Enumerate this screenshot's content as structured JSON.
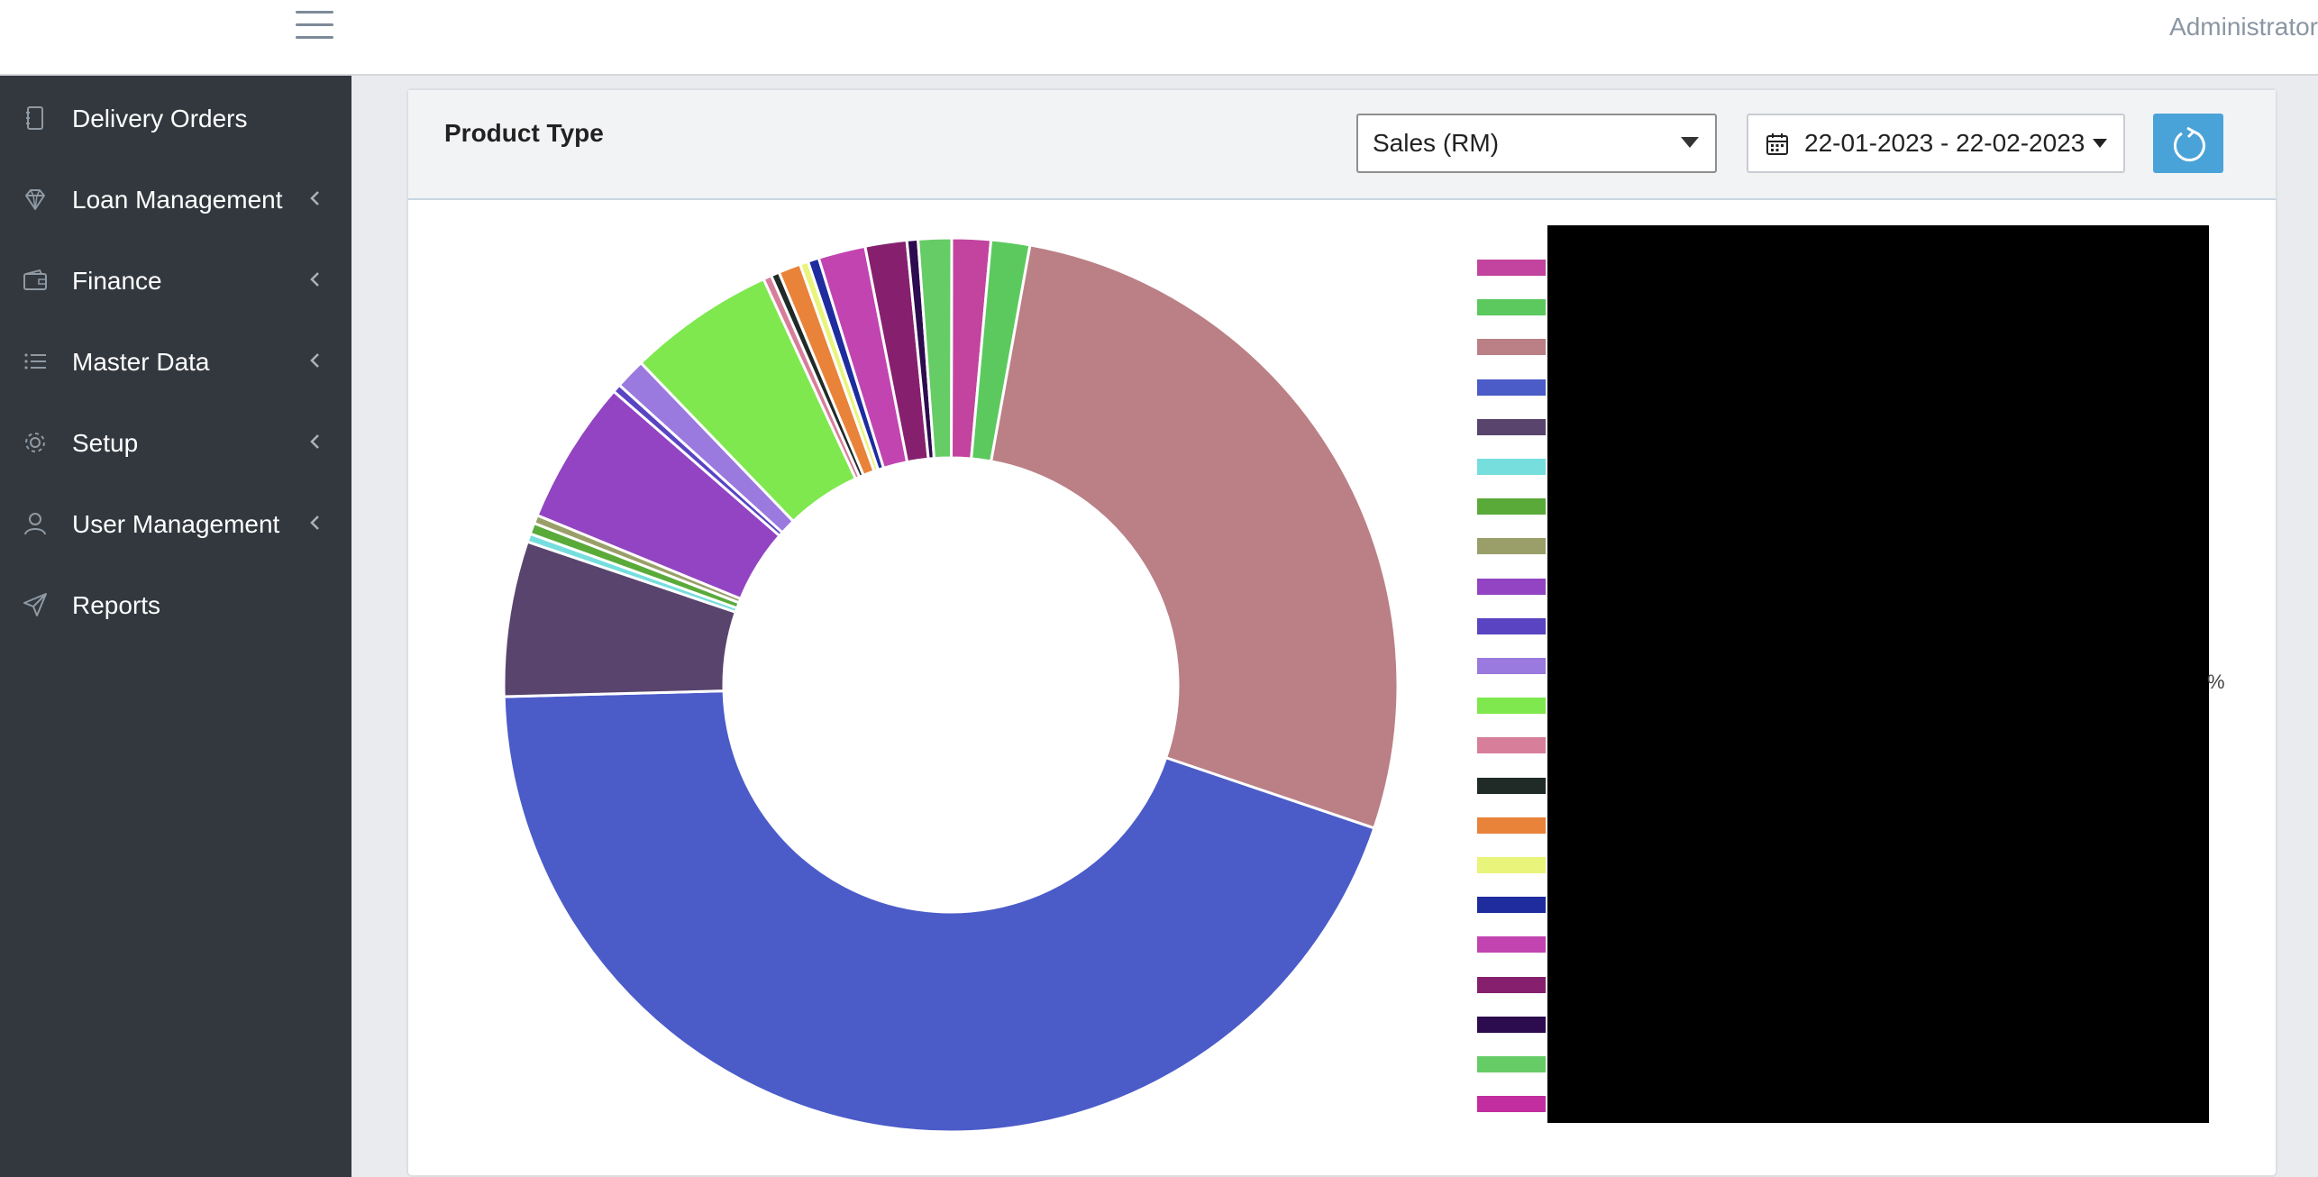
{
  "header": {
    "menu_icon": "hamburger-icon",
    "user_label": "Administrator"
  },
  "sidebar": {
    "items": [
      {
        "label": "Delivery Orders",
        "icon": "notebook-icon",
        "has_children": false
      },
      {
        "label": "Loan Management",
        "icon": "diamond-icon",
        "has_children": true
      },
      {
        "label": "Finance",
        "icon": "wallet-icon",
        "has_children": true
      },
      {
        "label": "Master Data",
        "icon": "list-icon",
        "has_children": true
      },
      {
        "label": "Setup",
        "icon": "gear-icon",
        "has_children": true
      },
      {
        "label": "User Management",
        "icon": "user-icon",
        "has_children": true
      },
      {
        "label": "Reports",
        "icon": "send-icon",
        "has_children": false
      }
    ]
  },
  "panel": {
    "title": "Product Type",
    "metric_select": {
      "value": "Sales (RM)"
    },
    "date_range": {
      "value": "22-01-2023 - 22-02-2023"
    },
    "refresh_icon": "refresh-icon",
    "legend_fragment": "%"
  },
  "chart_data": {
    "type": "donut",
    "title": "",
    "values": [
      1.4,
      1.4,
      27.3,
      44.3,
      5.6,
      0.3,
      0.4,
      0.3,
      5.2,
      0.3,
      1.1,
      5.3,
      0.3,
      0.3,
      0.8,
      0.3,
      0.4,
      1.7,
      1.5,
      0.4,
      1.2
    ],
    "colors": [
      "#c2449e",
      "#5cc95e",
      "#ba8086",
      "#4b5bc8",
      "#59446d",
      "#77dede",
      "#5aaa3a",
      "#9a9f6a",
      "#9244c2",
      "#5a44c2",
      "#9a7ade",
      "#7ee84e",
      "#d77e9a",
      "#202b28",
      "#e9833a",
      "#e9f47a",
      "#1e2c9e",
      "#c244b0",
      "#86206e",
      "#2c0b4e",
      "#66cc66"
    ],
    "legend_colors": [
      "#c2449e",
      "#5cc95e",
      "#ba8086",
      "#4b5bc8",
      "#59446d",
      "#77dede",
      "#5aaa3a",
      "#9a9f6a",
      "#9244c2",
      "#5a44c2",
      "#9a7ade",
      "#7ee84e",
      "#d77e9a",
      "#202b28",
      "#e9833a",
      "#e9f47a",
      "#1e2c9e",
      "#c244b0",
      "#86206e",
      "#2c0b4e",
      "#66cc66",
      "#c22ea0"
    ],
    "legend_placement": "right",
    "legend_labels_redacted": true
  }
}
